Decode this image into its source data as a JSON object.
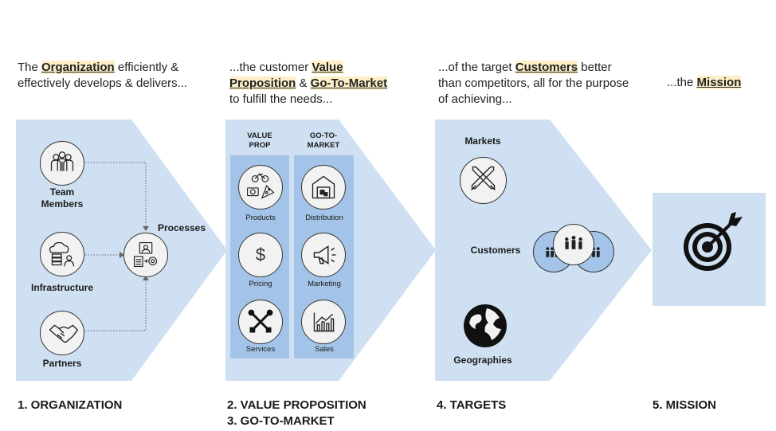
{
  "intros": {
    "org": {
      "pre": "The ",
      "hl": "Organization",
      "post": " efficiently & effectively develops & delivers..."
    },
    "value": {
      "pre": "...the customer ",
      "hl1": "Value Proposition",
      "mid": " & ",
      "hl2": "Go-To-Market",
      "post": " to fulfill the needs..."
    },
    "targets": {
      "pre": "...of the target ",
      "hl": "Customers",
      "post": " better than competitors, all for the purpose of achieving..."
    },
    "mission": {
      "pre": "...the ",
      "hl": "Mission"
    }
  },
  "organization": {
    "team": "Team Members",
    "infrastructure": "Infrastructure",
    "partners": "Partners",
    "processes": "Processes"
  },
  "value": {
    "col1_head": "VALUE PROP",
    "col2_head": "GO-TO-MARKET",
    "products": "Products",
    "pricing": "Pricing",
    "services": "Services",
    "distribution": "Distribution",
    "marketing": "Marketing",
    "sales": "Sales",
    "dollar": "$"
  },
  "targets": {
    "markets": "Markets",
    "customers": "Customers",
    "geographies": "Geographies"
  },
  "footers": {
    "org": "1. ORGANIZATION",
    "vp": "2. VALUE PROPOSITION",
    "gtm": "3. GO-TO-MARKET",
    "targets": "4. TARGETS",
    "mission": "5. MISSION"
  },
  "colors": {
    "panel": "#cfe0f2",
    "column": "#a3c4e8",
    "icon_bg": "#f2f2f2",
    "highlight": "#fdf0c8"
  }
}
